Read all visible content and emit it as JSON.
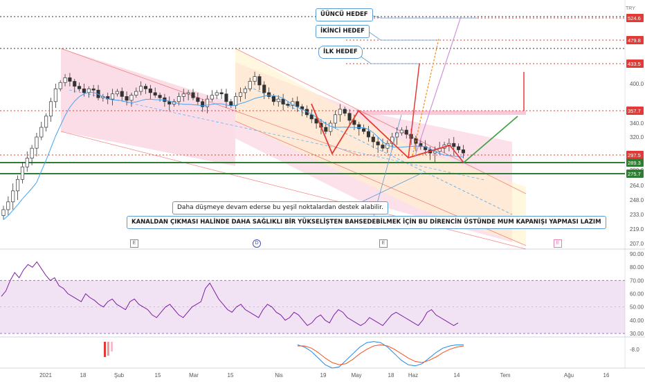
{
  "chart_data": [
    {
      "type": "candlestick",
      "title": "",
      "currency_label": "TRY",
      "y_ticks": [
        207.0,
        219.0,
        233.0,
        248.0,
        264.0,
        280.0,
        320.0,
        340.0,
        400.0
      ],
      "x_ticks": [
        "2021",
        "18",
        "Şub",
        "15",
        "Mar",
        "15",
        "Nis",
        "19",
        "May",
        "18",
        "Haz",
        "14",
        "Tem",
        "Ağu",
        "16"
      ],
      "price_levels": [
        {
          "label": "524.6",
          "value": 524.6,
          "color": "#e53935",
          "style": "dotted"
        },
        {
          "label": "479.8",
          "value": 479.8,
          "color": "#e53935",
          "style": "dotted"
        },
        {
          "label": "433.5",
          "value": 433.5,
          "color": "#e53935",
          "style": "dotted"
        },
        {
          "label": "357.7",
          "value": 357.7,
          "color": "#e53935",
          "style": "dotted"
        },
        {
          "label": "297.5",
          "value": 297.5,
          "color": "#e53935",
          "style": "dotted"
        },
        {
          "label": "289.3",
          "value": 289.3,
          "color": "#2e7d32",
          "style": "solid"
        },
        {
          "label": "275.7",
          "value": 275.7,
          "color": "#2e7d32",
          "style": "solid"
        }
      ],
      "close_series": [
        238,
        246,
        258,
        270,
        284,
        294,
        306,
        320,
        334,
        350,
        372,
        392,
        402,
        410,
        404,
        396,
        392,
        386,
        392,
        390,
        378,
        380,
        376,
        384,
        388,
        380,
        374,
        382,
        388,
        396,
        392,
        386,
        382,
        378,
        372,
        368,
        372,
        380,
        384,
        386,
        378,
        372,
        364,
        376,
        382,
        386,
        384,
        372,
        366,
        380,
        386,
        392,
        404,
        412,
        398,
        386,
        380,
        372,
        376,
        368,
        366,
        372,
        364,
        360,
        352,
        346,
        340,
        334,
        328,
        340,
        352,
        360,
        354,
        344,
        338,
        332,
        328,
        320,
        314,
        310,
        306,
        312,
        320,
        326,
        330,
        324,
        318,
        312,
        308,
        304,
        300,
        302,
        306,
        310,
        312,
        308,
        304,
        300
      ]
    },
    {
      "type": "line",
      "name": "RSI",
      "y_ticks": [
        30.0,
        40.0,
        50.0,
        60.0,
        70.0,
        80.0,
        90.0
      ],
      "band": [
        30,
        70
      ],
      "values": [
        58,
        62,
        70,
        76,
        72,
        78,
        82,
        80,
        84,
        79,
        74,
        70,
        72,
        66,
        64,
        60,
        58,
        56,
        54,
        60,
        57,
        55,
        52,
        50,
        54,
        56,
        52,
        50,
        48,
        54,
        56,
        52,
        50,
        48,
        44,
        42,
        46,
        50,
        52,
        48,
        44,
        42,
        46,
        50,
        52,
        54,
        64,
        68,
        62,
        56,
        52,
        48,
        46,
        50,
        52,
        48,
        46,
        44,
        42,
        48,
        52,
        50,
        46,
        44,
        40,
        42,
        46,
        44,
        40,
        36,
        38,
        42,
        44,
        40,
        38,
        44,
        48,
        46,
        42,
        40,
        38,
        36,
        38,
        42,
        40,
        38,
        36,
        40,
        44,
        46,
        44,
        42,
        40,
        38,
        36,
        40,
        46,
        48,
        44,
        42,
        40,
        38,
        36,
        38
      ]
    },
    {
      "type": "line",
      "name": "MACD",
      "y_ticks": [
        -8.0
      ],
      "series": [
        {
          "name": "MACD",
          "color": "#1e88e5",
          "values": [
            6,
            4,
            0,
            -6,
            -12,
            -15,
            -14,
            -8,
            -2,
            4,
            8,
            9,
            8,
            4,
            -2,
            -8,
            -12,
            -13,
            -11,
            -6,
            -1,
            3,
            5,
            6,
            6
          ]
        },
        {
          "name": "Signal",
          "color": "#f4511e",
          "values": [
            5,
            5,
            3,
            -1,
            -6,
            -10,
            -12,
            -11,
            -7,
            -2,
            2,
            5,
            6,
            5,
            2,
            -2,
            -6,
            -9,
            -10,
            -8,
            -5,
            -1,
            2,
            4,
            5
          ]
        }
      ]
    }
  ],
  "annotations": {
    "target3": "ÜÜNCÜ HEDEF",
    "target2": "İKİNCİ HEDEF",
    "target1": "İLK HEDEF",
    "support_note": "Daha düşmeye devam ederse bu yeşil noktalardan destek alabilir.",
    "breakout_note": "KANALDAN ÇIKMASI HALİNDE DAHA SAĞLIKLI BİR YÜKSELİŞTEN BAHSEDEBİLMEK İÇİN BU DİRENCİN ÜSTÜNDE MUM KAPANIŞI YAPMASI LAZIM"
  },
  "event_markers": [
    "E",
    "D",
    "E",
    "E"
  ],
  "colors": {
    "up": "#26a69a",
    "down": "#ef5350",
    "rsi": "#7b1fa2",
    "channel_fill": "#f8bbd0",
    "level_red": "#e53935",
    "level_green": "#2e7d32"
  }
}
